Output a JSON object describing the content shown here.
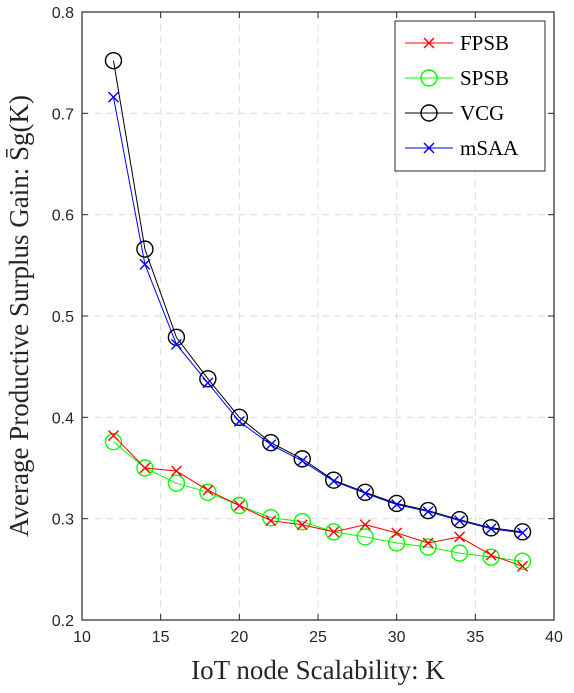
{
  "chart_data": {
    "type": "line",
    "title": "",
    "xlabel": "IoT node Scalability: K",
    "ylabel": "Average Productive Surplus Gain: S̄g(K)",
    "xlim": [
      10,
      40
    ],
    "ylim": [
      0.2,
      0.8
    ],
    "xticks": [
      "10",
      "15",
      "20",
      "25",
      "30",
      "35",
      "40"
    ],
    "yticks": [
      "0.2",
      "0.3",
      "0.4",
      "0.5",
      "0.6",
      "0.7",
      "0.8"
    ],
    "grid": true,
    "legend_position": "top-right",
    "x": [
      12,
      14,
      16,
      18,
      20,
      22,
      24,
      26,
      28,
      30,
      32,
      34,
      36,
      38
    ],
    "series": [
      {
        "name": "FPSB",
        "color": "#ff0000",
        "marker": "x",
        "values": [
          0.382,
          0.35,
          0.347,
          0.328,
          0.313,
          0.298,
          0.294,
          0.287,
          0.294,
          0.286,
          0.276,
          0.282,
          0.264,
          0.253
        ]
      },
      {
        "name": "SPSB",
        "color": "#00ff00",
        "marker": "circle",
        "values": [
          0.376,
          0.35,
          0.335,
          0.326,
          0.313,
          0.301,
          0.297,
          0.287,
          0.282,
          0.276,
          0.272,
          0.266,
          0.262,
          0.258
        ]
      },
      {
        "name": "VCG",
        "color": "#000000",
        "marker": "circle",
        "values": [
          0.752,
          0.566,
          0.479,
          0.438,
          0.4,
          0.375,
          0.359,
          0.338,
          0.326,
          0.315,
          0.308,
          0.299,
          0.291,
          0.287
        ]
      },
      {
        "name": "mSAA",
        "color": "#0000ff",
        "marker": "x",
        "values": [
          0.716,
          0.551,
          0.472,
          0.434,
          0.396,
          0.373,
          0.357,
          0.337,
          0.325,
          0.314,
          0.307,
          0.298,
          0.29,
          0.286
        ]
      }
    ]
  }
}
